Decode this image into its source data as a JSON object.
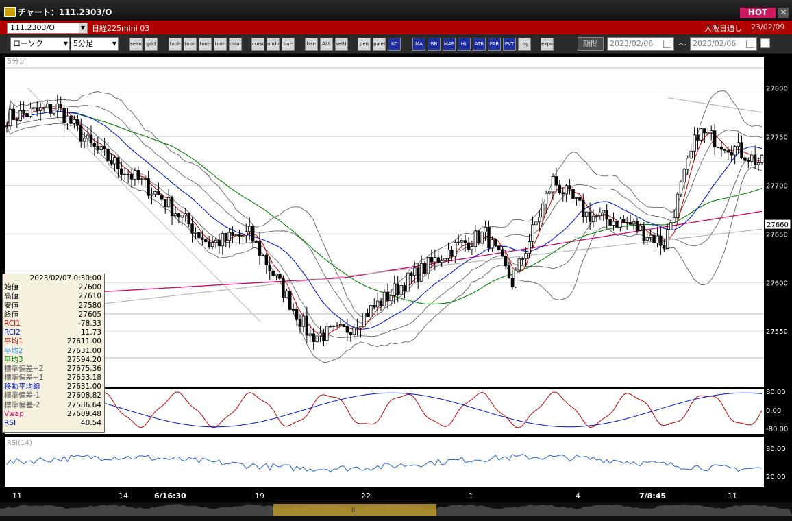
{
  "window": {
    "title": "チャート：111.2303/O",
    "hot_label": "HOT",
    "close_label": "✕"
  },
  "symbol": {
    "code": "111.2303/O",
    "name": "日経225mini 03",
    "market": "大阪日通し",
    "date": "23/02/09"
  },
  "toolbar": {
    "chart_type": "ローソク",
    "interval": "5分足",
    "period_label": "期間",
    "date_from": "2023/02/06",
    "date_to": "2023/02/06",
    "range_separator": "〜",
    "buttons": [
      "search",
      "grid",
      "tool-a",
      "tool-b",
      "tool-c",
      "tool-d",
      "color",
      "cursor",
      "undo",
      "bar-a",
      "bar-b",
      "ALL",
      "settings",
      "pen",
      "palette",
      "KC",
      "MA",
      "BB",
      "MAE",
      "HL",
      "ATR",
      "PAR",
      "PVT",
      "Log",
      "export"
    ]
  },
  "chart": {
    "interval_label": "5分足",
    "rsi_label": "RSI(14)",
    "price_ticks": [
      "27800",
      "27750",
      "27700",
      "27650",
      "27600",
      "27550"
    ],
    "current_price": "27660",
    "osc_ticks": [
      "80.00",
      "0.00",
      "-80.00"
    ],
    "rsi_ticks": [
      "80.00",
      "20.00"
    ],
    "x_labels": [
      "11",
      "14",
      "6/16:30",
      "19",
      "22",
      "1",
      "4",
      "7/8:45",
      "11"
    ],
    "colors": {
      "price_line": "#000000",
      "ma1": "#c00000",
      "ma2": "#0018d0",
      "ma3": "#008000",
      "vwap": "#d0006a",
      "bands": "#505050",
      "rsi": "#2060d0",
      "bg": "#ffffff"
    }
  },
  "info_panel": {
    "timestamp": "2023/02/07  0:30:00",
    "rows": [
      {
        "label": "始値",
        "value": "27600",
        "color": "#000000"
      },
      {
        "label": "高値",
        "value": "27610",
        "color": "#000000"
      },
      {
        "label": "安値",
        "value": "27580",
        "color": "#000000"
      },
      {
        "label": "終値",
        "value": "27605",
        "color": "#000000"
      },
      {
        "label": "RCI1",
        "value": "-78.33",
        "color": "#c00000"
      },
      {
        "label": "RCI2",
        "value": "11.73",
        "color": "#0018d0"
      },
      {
        "label": "平均1",
        "value": "27611.00",
        "color": "#c00000"
      },
      {
        "label": "平均2",
        "value": "27631.00",
        "color": "#1e90ff"
      },
      {
        "label": "平均3",
        "value": "27594.20",
        "color": "#008000"
      },
      {
        "label": "標準偏差+2",
        "value": "27675.36",
        "color": "#555555"
      },
      {
        "label": "標準偏差+1",
        "value": "27653.18",
        "color": "#555555"
      },
      {
        "label": "移動平均線",
        "value": "27631.00",
        "color": "#0018d0"
      },
      {
        "label": "標準偏差-1",
        "value": "27608.82",
        "color": "#555555"
      },
      {
        "label": "標準偏差-2",
        "value": "27586.64",
        "color": "#555555"
      },
      {
        "label": "Vwap",
        "value": "27609.48",
        "color": "#d0006a"
      },
      {
        "label": "RSI",
        "value": "40.54",
        "color": "#0018d0"
      }
    ]
  }
}
